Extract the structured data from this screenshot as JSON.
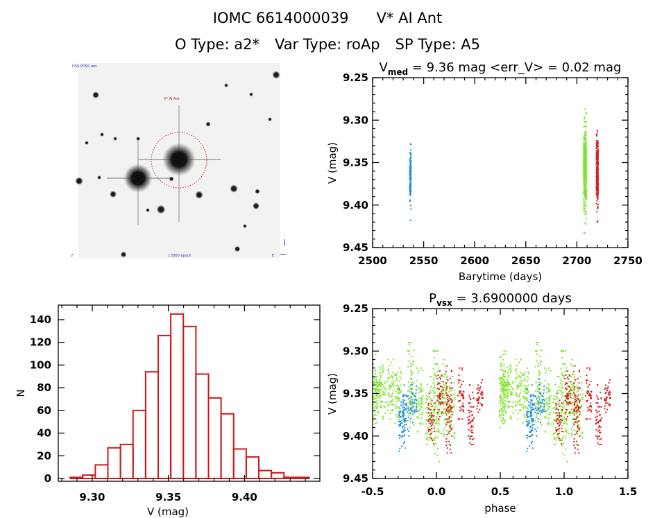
{
  "header": {
    "object_id": "IOMC 6614000039",
    "star_name": "V* AI Ant",
    "o_type": "O Type: a2*",
    "var_type": "Var Type: roAp",
    "sp_type": "SP Type: A5"
  },
  "finder_image": {
    "label_top_left": "DSS POSS red",
    "label_target": "V* AI Ant",
    "label_bottom_left": "2'",
    "label_bottom_center": "J 2000 epoch",
    "label_bottom_right": "E",
    "label_north": "N",
    "circle_color": "#cc2020"
  },
  "colors": {
    "blue": "#1e90d6",
    "green": "#7ee52c",
    "red": "#d42020",
    "hist": "#d01818",
    "axis": "#000000"
  },
  "chart_data": [
    {
      "id": "light-curve",
      "type": "scatter",
      "title": "V_med = 9.36 mag <err_V> = 0.02 mag",
      "title_main": "V",
      "title_sub": "med",
      "title_rest": " = 9.36 mag <err_V> = 0.02 mag",
      "xlabel": "Barytime (days)",
      "ylabel": "V (mag)",
      "xlim": [
        2500,
        2750
      ],
      "ylim": [
        9.45,
        9.25
      ],
      "y_inverted": true,
      "xticks": [
        2500,
        2550,
        2600,
        2650,
        2700,
        2750
      ],
      "xtick_labels": [
        "2500",
        "2550",
        "2600",
        "2650",
        "2700",
        "2750"
      ],
      "yticks": [
        9.25,
        9.3,
        9.35,
        9.4,
        9.45
      ],
      "ytick_labels": [
        "9.25",
        "9.30",
        "9.35",
        "9.40",
        "9.45"
      ],
      "series": [
        {
          "name": "season-1",
          "color": "blue",
          "x_center": 2537,
          "x_spread": 0.6,
          "v_min": 9.328,
          "v_max": 9.418,
          "v_mean": 9.365,
          "v_sd": 0.015,
          "n": 140
        },
        {
          "name": "season-2",
          "color": "green",
          "x_center": 2708,
          "x_spread": 1.4,
          "v_min": 9.287,
          "v_max": 9.433,
          "v_mean": 9.355,
          "v_sd": 0.022,
          "n": 520
        },
        {
          "name": "season-3",
          "color": "red",
          "x_center": 2720,
          "x_spread": 0.9,
          "v_min": 9.312,
          "v_max": 9.42,
          "v_mean": 9.362,
          "v_sd": 0.018,
          "n": 330
        }
      ]
    },
    {
      "id": "histogram",
      "type": "bar",
      "title": "",
      "xlabel": "V (mag)",
      "ylabel": "N",
      "xlim": [
        9.2777,
        9.4495
      ],
      "ylim": [
        0,
        153
      ],
      "xticks": [
        9.3,
        9.35,
        9.4
      ],
      "xtick_labels": [
        "9.30",
        "9.35",
        "9.40"
      ],
      "yticks": [
        0,
        20,
        40,
        60,
        80,
        100,
        120,
        140
      ],
      "ytick_labels": [
        "0",
        "20",
        "40",
        "60",
        "80",
        "100",
        "120",
        "140"
      ],
      "bin_start": 9.2855,
      "bin_width": 0.00826,
      "values": [
        1,
        3,
        12,
        27,
        30,
        60,
        94,
        126,
        145,
        134,
        92,
        71,
        57,
        26,
        19,
        7,
        5,
        1,
        1
      ]
    },
    {
      "id": "phase-curve",
      "type": "scatter",
      "title": "P_vsx = 3.6900000 days",
      "title_main": "P",
      "title_sub": "vsx",
      "title_rest": " = 3.6900000 days",
      "xlabel": "phase",
      "ylabel": "V (mag)",
      "xlim": [
        -0.5,
        1.5
      ],
      "ylim": [
        9.45,
        9.25
      ],
      "y_inverted": true,
      "xticks": [
        -0.5,
        0.0,
        0.5,
        1.0,
        1.5
      ],
      "xtick_labels": [
        "-0.5",
        "0.0",
        "0.5",
        "1.0",
        "1.5"
      ],
      "yticks": [
        9.25,
        9.3,
        9.35,
        9.4,
        9.45
      ],
      "ytick_labels": [
        "9.25",
        "9.30",
        "9.35",
        "9.40",
        "9.45"
      ],
      "period_days": 3.69,
      "series": [
        {
          "name": "season-1",
          "color": "blue",
          "phase_groups": [
            [
              -0.27,
              9.345,
              9.418
            ],
            [
              -0.18,
              9.333,
              9.385
            ],
            [
              -0.24,
              9.34,
              9.4
            ]
          ]
        },
        {
          "name": "season-2",
          "color": "green",
          "phase_groups": [
            [
              -0.48,
              9.3,
              9.39
            ],
            [
              -0.42,
              9.31,
              9.38
            ],
            [
              -0.36,
              9.31,
              9.38
            ],
            [
              -0.3,
              9.31,
              9.385
            ],
            [
              -0.2,
              9.29,
              9.39
            ],
            [
              -0.13,
              9.32,
              9.395
            ],
            [
              -0.06,
              9.33,
              9.41
            ],
            [
              0.0,
              9.3,
              9.43
            ],
            [
              0.06,
              9.31,
              9.4
            ],
            [
              0.12,
              9.33,
              9.41
            ],
            [
              -0.46,
              9.33,
              9.36
            ],
            [
              0.52,
              9.3,
              9.39
            ]
          ]
        },
        {
          "name": "season-3",
          "color": "red",
          "phase_groups": [
            [
              -0.04,
              9.35,
              9.41
            ],
            [
              0.03,
              9.32,
              9.38
            ],
            [
              0.1,
              9.31,
              9.42
            ],
            [
              0.19,
              9.32,
              9.38
            ],
            [
              0.27,
              9.34,
              9.41
            ],
            [
              0.34,
              9.33,
              9.38
            ]
          ]
        }
      ]
    }
  ]
}
